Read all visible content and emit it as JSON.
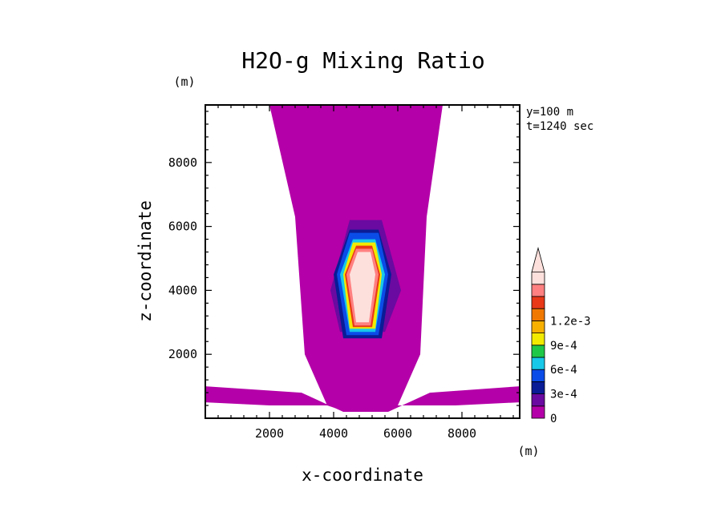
{
  "chart_data": {
    "type": "heatmap",
    "title": "H2O-g Mixing Ratio",
    "xlabel": "x-coordinate",
    "ylabel": "z-coordinate",
    "x_unit": "(m)",
    "y_unit": "(m)",
    "xlim": [
      0,
      9800
    ],
    "ylim": [
      0,
      9800
    ],
    "x_ticks": [
      2000,
      4000,
      6000,
      8000
    ],
    "y_ticks": [
      2000,
      4000,
      6000,
      8000
    ],
    "annotations": [
      "y=100 m",
      "t=1240 sec"
    ],
    "colorbar": {
      "levels": [
        0,
        0.00015,
        0.0003,
        0.00045,
        0.0006,
        0.00075,
        0.0009,
        0.00105,
        0.0012
      ],
      "tick_labels": [
        "0",
        "3e-4",
        "6e-4",
        "9e-4",
        "1.2e-3"
      ],
      "colors": [
        "#b400a8",
        "#6a0aa0",
        "#0a1c96",
        "#0a4ce8",
        "#18c8e8",
        "#20c848",
        "#f2ea00",
        "#f8b000",
        "#f07800",
        "#e83818",
        "#ff8080",
        "#fde0dc"
      ]
    },
    "regions": [
      {
        "level": 0,
        "points": [
          [
            2000,
            9800
          ],
          [
            7400,
            9800
          ],
          [
            6900,
            6300
          ],
          [
            6700,
            2000
          ],
          [
            6000,
            400
          ],
          [
            5600,
            200
          ],
          [
            4400,
            200
          ],
          [
            3800,
            400
          ],
          [
            3100,
            2000
          ],
          [
            2800,
            6300
          ]
        ]
      },
      {
        "level": 0,
        "points": [
          [
            0,
            1000
          ],
          [
            3000,
            800
          ],
          [
            4300,
            200
          ],
          [
            4500,
            200
          ],
          [
            4700,
            800
          ],
          [
            5300,
            800
          ],
          [
            5500,
            200
          ],
          [
            5700,
            200
          ],
          [
            7000,
            800
          ],
          [
            9800,
            1000
          ],
          [
            9800,
            500
          ],
          [
            7800,
            400
          ],
          [
            6800,
            400
          ],
          [
            5800,
            400
          ],
          [
            4200,
            400
          ],
          [
            3200,
            400
          ],
          [
            2000,
            400
          ],
          [
            0,
            500
          ]
        ]
      },
      {
        "level": 1,
        "points": [
          [
            4500,
            6200
          ],
          [
            5500,
            6200
          ],
          [
            6100,
            4000
          ],
          [
            5600,
            2700
          ],
          [
            4200,
            2700
          ],
          [
            3900,
            4000
          ]
        ]
      },
      {
        "level": 2,
        "points": [
          [
            4500,
            5900
          ],
          [
            5400,
            5900
          ],
          [
            5800,
            4500
          ],
          [
            5500,
            2500
          ],
          [
            4300,
            2500
          ],
          [
            4000,
            4500
          ]
        ]
      },
      {
        "level": 3,
        "points": [
          [
            4500,
            5800
          ],
          [
            5400,
            5800
          ],
          [
            5700,
            4500
          ],
          [
            5400,
            2600
          ],
          [
            4400,
            2600
          ],
          [
            4100,
            4500
          ]
        ]
      },
      {
        "level": 4,
        "points": [
          [
            4600,
            5600
          ],
          [
            5300,
            5600
          ],
          [
            5600,
            4500
          ],
          [
            5300,
            2700
          ],
          [
            4500,
            2700
          ],
          [
            4200,
            4500
          ]
        ]
      },
      {
        "level": 6,
        "points": [
          [
            4600,
            5500
          ],
          [
            5300,
            5500
          ],
          [
            5500,
            4500
          ],
          [
            5300,
            2800
          ],
          [
            4500,
            2800
          ],
          [
            4300,
            4500
          ]
        ]
      },
      {
        "level": 9,
        "points": [
          [
            4700,
            5400
          ],
          [
            5200,
            5400
          ],
          [
            5450,
            4500
          ],
          [
            5200,
            2850
          ],
          [
            4600,
            2850
          ],
          [
            4350,
            4500
          ]
        ]
      },
      {
        "level": 10,
        "points": [
          [
            4700,
            5300
          ],
          [
            5200,
            5300
          ],
          [
            5400,
            4500
          ],
          [
            5150,
            2900
          ],
          [
            4650,
            2900
          ],
          [
            4400,
            4500
          ]
        ]
      },
      {
        "level": 11,
        "points": [
          [
            4750,
            5200
          ],
          [
            5150,
            5200
          ],
          [
            5300,
            4500
          ],
          [
            5100,
            3000
          ],
          [
            4700,
            3000
          ],
          [
            4500,
            4500
          ]
        ]
      }
    ]
  }
}
